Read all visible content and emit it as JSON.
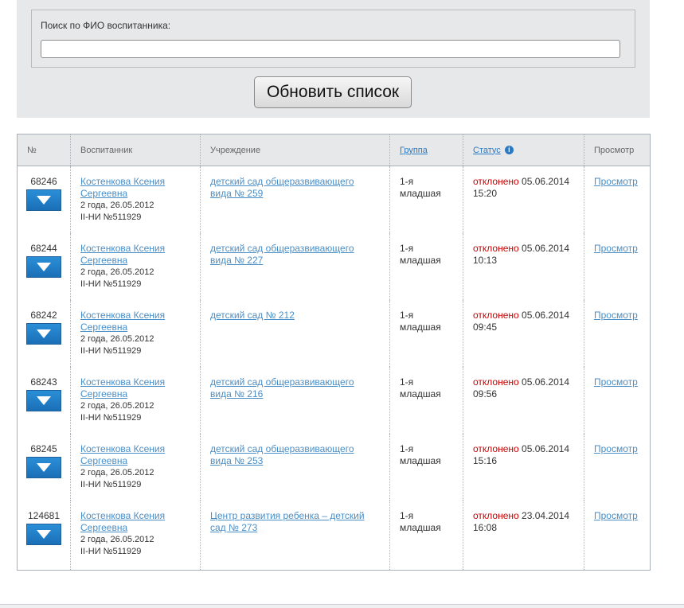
{
  "search": {
    "label": "Поиск по ФИО воспитанника:",
    "value": "",
    "placeholder": ""
  },
  "refresh_button": "Обновить список",
  "table": {
    "headers": {
      "num": "№",
      "child": "Воспитанник",
      "institution": "Учреждение",
      "group": "Группа",
      "status": "Статус",
      "view": "Просмотр"
    },
    "rows": [
      {
        "num": "68246",
        "child_name_1": "Костенкова Ксения",
        "child_name_2": "Сергеевна",
        "age": "2 года, 26.05.2012",
        "doc": "II-НИ №511929",
        "inst_1": "детский сад общеразвивающего",
        "inst_2": "вида № 259",
        "group_1": "1-я",
        "group_2": "младшая",
        "status_word": "отклонено",
        "status_date": " 05.06.2014",
        "status_time": "15:20",
        "view": "Просмотр"
      },
      {
        "num": "68244",
        "child_name_1": "Костенкова Ксения",
        "child_name_2": "Сергеевна",
        "age": "2 года, 26.05.2012",
        "doc": "II-НИ №511929",
        "inst_1": "детский сад общеразвивающего",
        "inst_2": "вида № 227",
        "group_1": "1-я",
        "group_2": "младшая",
        "status_word": "отклонено",
        "status_date": " 05.06.2014",
        "status_time": "10:13",
        "view": "Просмотр"
      },
      {
        "num": "68242",
        "child_name_1": "Костенкова Ксения",
        "child_name_2": "Сергеевна",
        "age": "2 года, 26.05.2012",
        "doc": "II-НИ №511929",
        "inst_1": "детский сад № 212",
        "inst_2": "",
        "group_1": "1-я",
        "group_2": "младшая",
        "status_word": "отклонено",
        "status_date": " 05.06.2014",
        "status_time": "09:45",
        "view": "Просмотр"
      },
      {
        "num": "68243",
        "child_name_1": "Костенкова Ксения",
        "child_name_2": "Сергеевна",
        "age": "2 года, 26.05.2012",
        "doc": "II-НИ №511929",
        "inst_1": "детский сад общеразвивающего",
        "inst_2": "вида № 216",
        "group_1": "1-я",
        "group_2": "младшая",
        "status_word": "отклонено",
        "status_date": " 05.06.2014",
        "status_time": "09:56",
        "view": "Просмотр"
      },
      {
        "num": "68245",
        "child_name_1": "Костенкова Ксения",
        "child_name_2": "Сергеевна",
        "age": "2 года, 26.05.2012",
        "doc": "II-НИ №511929",
        "inst_1": "детский сад общеразвивающего",
        "inst_2": "вида № 253",
        "group_1": "1-я",
        "group_2": "младшая",
        "status_word": "отклонено",
        "status_date": " 05.06.2014",
        "status_time": "15:16",
        "view": "Просмотр"
      },
      {
        "num": "124681",
        "child_name_1": "Костенкова Ксения",
        "child_name_2": "Сергеевна",
        "age": "2 года, 26.05.2012",
        "doc": "II-НИ №511929",
        "inst_1": "Центр развития ребенка – детский",
        "inst_2": "сад № 273",
        "group_1": "1-я",
        "group_2": "младшая",
        "status_word": "отклонено",
        "status_date": " 23.04.2014",
        "status_time": "16:08",
        "view": "Просмотр"
      }
    ]
  },
  "colors": {
    "panel_bg": "#e7e8ea",
    "link": "#4a8ec6",
    "status_rejected": "#cc0000",
    "expand_button": "#2a8fd8"
  },
  "icons": {
    "expand": "triangle-down-icon",
    "status_info": "info-icon"
  }
}
